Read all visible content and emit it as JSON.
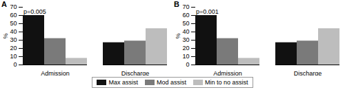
{
  "chart_data": [
    {
      "type": "bar",
      "title": "A",
      "annotation": "p=0.005",
      "categories": [
        "Admission",
        "Discharge"
      ],
      "series": [
        {
          "name": "Max assist",
          "color": "#111111",
          "values": [
            60,
            27
          ]
        },
        {
          "name": "Mod assist",
          "color": "#7a7a7a",
          "values": [
            32,
            29
          ]
        },
        {
          "name": "Min to no assist",
          "color": "#bdbdbd",
          "values": [
            8,
            44
          ]
        }
      ],
      "ylabel": "%",
      "ylim": [
        0,
        70
      ],
      "yticks": [
        0,
        10,
        20,
        30,
        40,
        50,
        60,
        70
      ],
      "grid": false,
      "legend": "bottom"
    },
    {
      "type": "bar",
      "title": "B",
      "annotation": "p=0.001",
      "categories": [
        "Admission",
        "Discharge"
      ],
      "series": [
        {
          "name": "Max assist",
          "color": "#111111",
          "values": [
            60,
            27
          ]
        },
        {
          "name": "Mod assist",
          "color": "#7a7a7a",
          "values": [
            32,
            29
          ]
        },
        {
          "name": "Min to no assist",
          "color": "#bdbdbd",
          "values": [
            8,
            44
          ]
        }
      ],
      "ylabel": "%",
      "ylim": [
        0,
        70
      ],
      "yticks": [
        0,
        10,
        20,
        30,
        40,
        50,
        60,
        70
      ],
      "grid": false,
      "legend": "bottom"
    }
  ]
}
